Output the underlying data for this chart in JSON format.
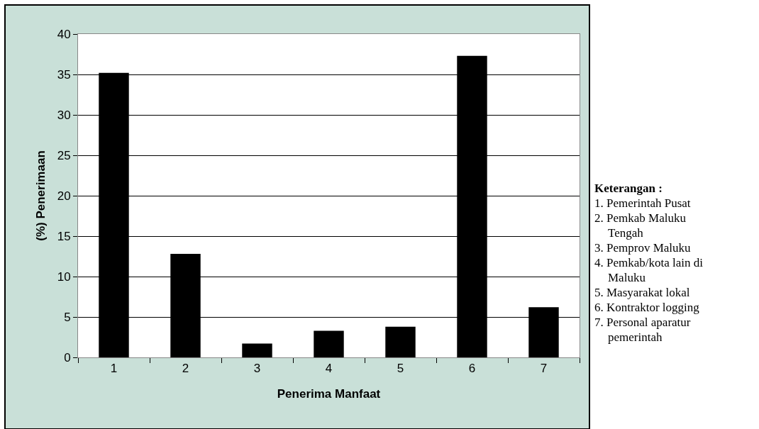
{
  "chart_data": {
    "type": "bar",
    "xlabel": "Penerima Manfaat",
    "ylabel": "(%) Penerimaan",
    "categories": [
      "1",
      "2",
      "3",
      "4",
      "5",
      "6",
      "7"
    ],
    "values": [
      35.2,
      12.8,
      1.7,
      3.3,
      3.8,
      37.3,
      6.2
    ],
    "color": "#000000",
    "ylim": [
      0,
      40
    ],
    "yticks": [
      0,
      5,
      10,
      15,
      20,
      25,
      30,
      35,
      40
    ],
    "grid": "y",
    "annotations": [
      "Keterangan :",
      "1. Pemerintah  Pusat",
      "2. Pemkab Maluku Tengah",
      "3. Pemprov Maluku",
      "4. Pemkab/kota lain di Maluku",
      "5. Masyarakat lokal",
      "6. Kontraktor logging",
      "7. Personal aparatur pemerintah"
    ]
  }
}
